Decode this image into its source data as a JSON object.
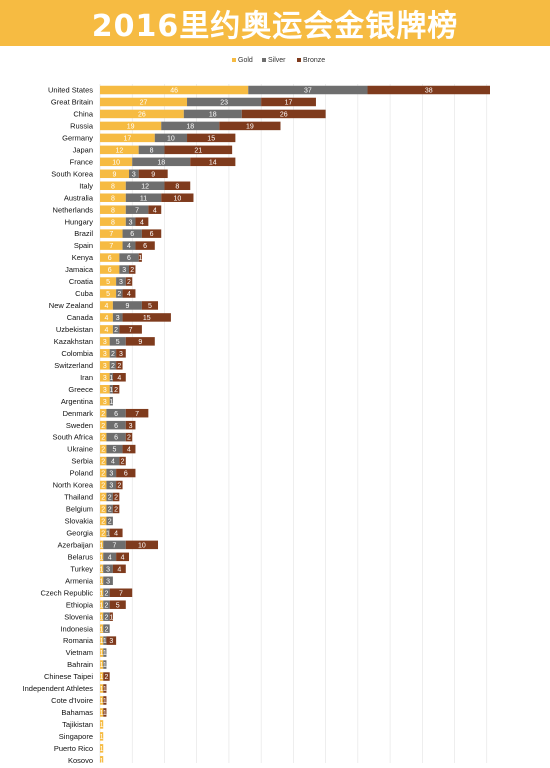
{
  "title": "2016里约奥运会金银牌榜",
  "colors": {
    "gold": "#f6bb42",
    "silver": "#6e6e6e",
    "bronze": "#7f3b1d",
    "header_bg": "#f6bb42",
    "grid": "#e3e3e3"
  },
  "chart_data": {
    "type": "bar",
    "orientation": "horizontal",
    "stacked": true,
    "title": "2016里约奥运会金银牌榜",
    "legend": {
      "position": "top",
      "entries": [
        "Gold",
        "Silver",
        "Bronze"
      ]
    },
    "grid": true,
    "xlim": [
      0,
      121
    ],
    "categories": [
      "United States",
      "Great Britain",
      "China",
      "Russia",
      "Germany",
      "Japan",
      "France",
      "South Korea",
      "Italy",
      "Australia",
      "Netherlands",
      "Hungary",
      "Brazil",
      "Spain",
      "Kenya",
      "Jamaica",
      "Croatia",
      "Cuba",
      "New Zealand",
      "Canada",
      "Uzbekistan",
      "Kazakhstan",
      "Colombia",
      "Switzerland",
      "Iran",
      "Greece",
      "Argentina",
      "Denmark",
      "Sweden",
      "South Africa",
      "Ukraine",
      "Serbia",
      "Poland",
      "North Korea",
      "Thailand",
      "Belgium",
      "Slovakia",
      "Georgia",
      "Azerbaijan",
      "Belarus",
      "Turkey",
      "Armenia",
      "Czech Republic",
      "Ethiopia",
      "Slovenia",
      "Indonesia",
      "Romania",
      "Vietnam",
      "Bahrain",
      "Chinese Taipei",
      "Independent Athletes",
      "Cote d'Ivoire",
      "Bahamas",
      "Tajikistan",
      "Singapore",
      "Puerto Rico",
      "Kosovo"
    ],
    "series": [
      {
        "name": "Gold",
        "values": [
          46,
          27,
          26,
          19,
          17,
          12,
          10,
          9,
          8,
          8,
          8,
          8,
          7,
          7,
          6,
          6,
          5,
          5,
          4,
          4,
          4,
          3,
          3,
          3,
          3,
          3,
          3,
          2,
          2,
          2,
          2,
          2,
          2,
          2,
          2,
          2,
          2,
          2,
          1,
          1,
          1,
          1,
          1,
          1,
          1,
          1,
          1,
          1,
          1,
          1,
          1,
          1,
          1,
          1,
          1,
          1,
          1
        ]
      },
      {
        "name": "Silver",
        "values": [
          37,
          23,
          18,
          18,
          10,
          8,
          18,
          3,
          12,
          11,
          7,
          3,
          6,
          4,
          6,
          3,
          3,
          2,
          9,
          3,
          2,
          5,
          2,
          2,
          1,
          1,
          1,
          6,
          6,
          6,
          5,
          4,
          3,
          3,
          2,
          2,
          2,
          1,
          7,
          4,
          3,
          3,
          2,
          2,
          2,
          2,
          1,
          1,
          1,
          0,
          0,
          0,
          0,
          0,
          0,
          0,
          0
        ]
      },
      {
        "name": "Bronze",
        "values": [
          38,
          17,
          26,
          19,
          15,
          21,
          14,
          9,
          8,
          10,
          4,
          4,
          6,
          6,
          1,
          2,
          2,
          4,
          5,
          15,
          7,
          9,
          3,
          2,
          4,
          2,
          0,
          7,
          3,
          2,
          4,
          2,
          6,
          2,
          2,
          2,
          0,
          4,
          10,
          4,
          4,
          0,
          7,
          5,
          1,
          0,
          3,
          0,
          0,
          2,
          1,
          1,
          1,
          0,
          0,
          0,
          0
        ]
      }
    ]
  }
}
